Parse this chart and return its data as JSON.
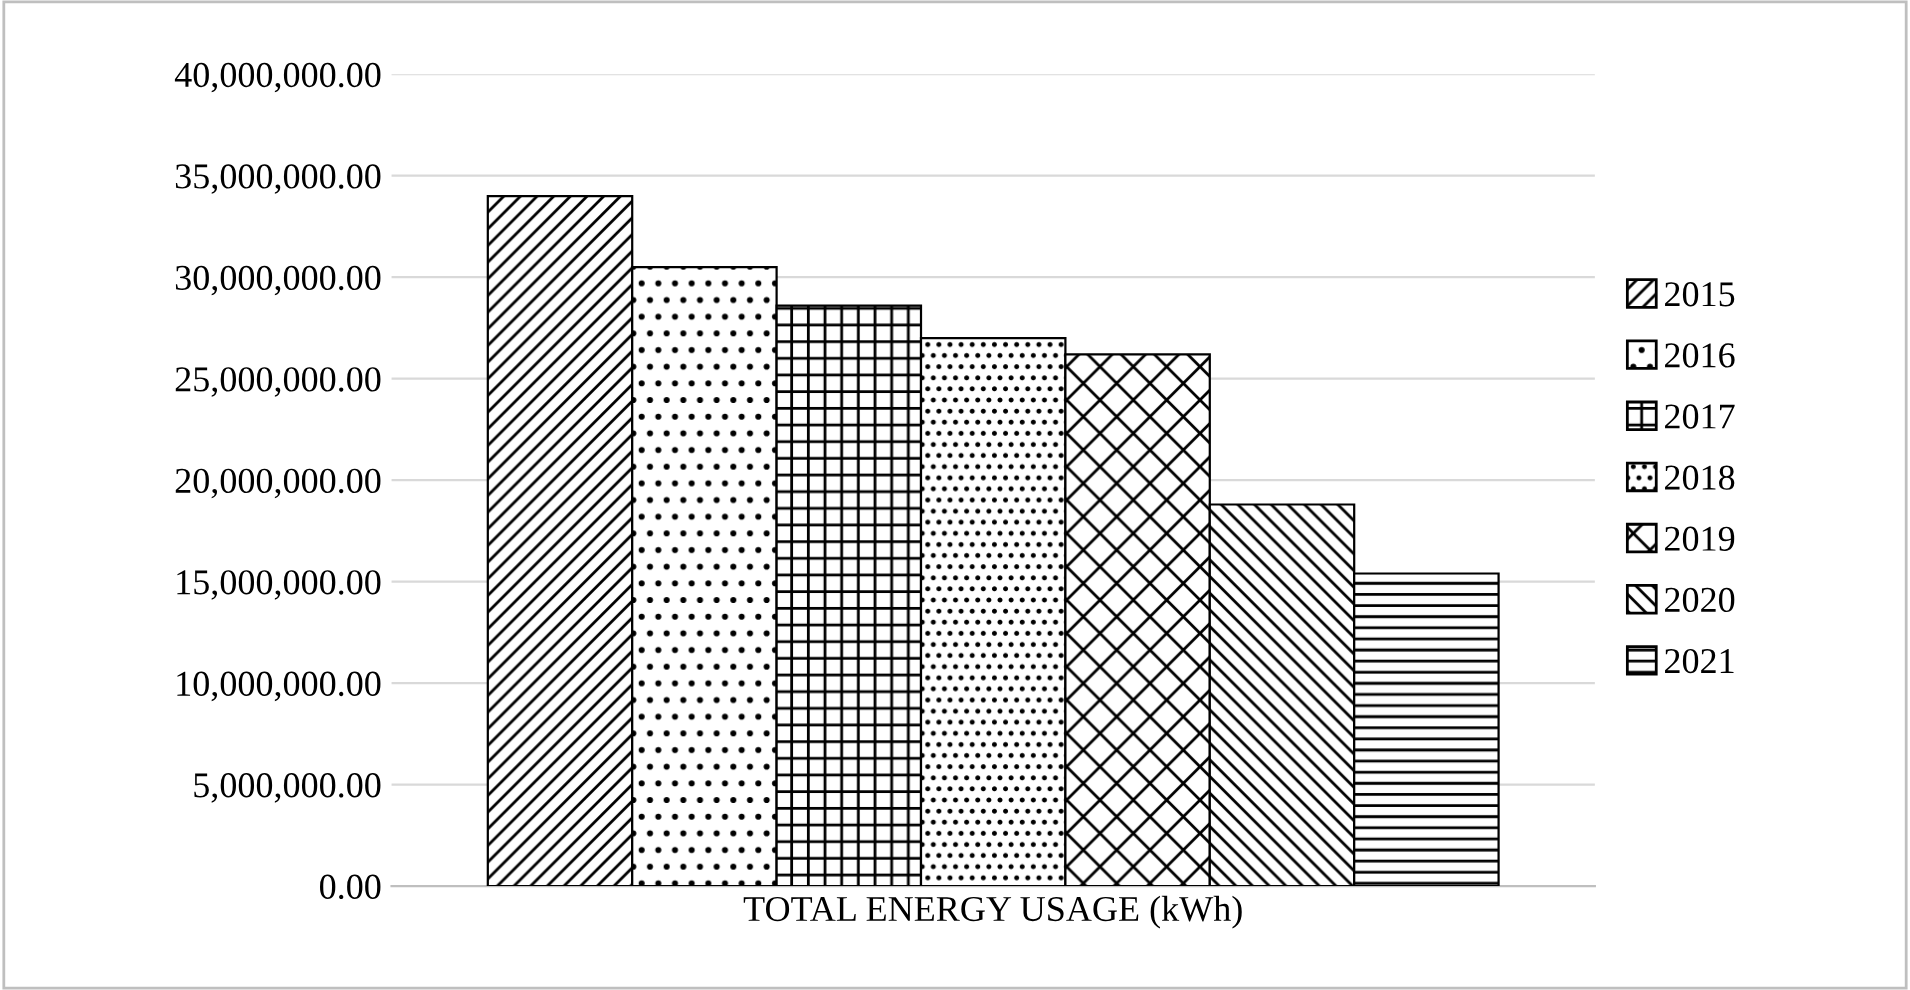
{
  "chart_data": {
    "type": "bar",
    "categories": [
      "TOTAL ENERGY USAGE (kWh)"
    ],
    "series": [
      {
        "name": "2015",
        "color": "#000000",
        "values": [
          34000000
        ]
      },
      {
        "name": "2016",
        "color": "#000000",
        "values": [
          30500000
        ]
      },
      {
        "name": "2017",
        "color": "#000000",
        "values": [
          28600000
        ]
      },
      {
        "name": "2018",
        "color": "#000000",
        "values": [
          27000000
        ]
      },
      {
        "name": "2019",
        "color": "#000000",
        "values": [
          26200000
        ]
      },
      {
        "name": "2020",
        "color": "#000000",
        "values": [
          18800000
        ]
      },
      {
        "name": "2021",
        "color": "#000000",
        "values": [
          15400000
        ]
      }
    ],
    "ylim": [
      0,
      40000000
    ],
    "yticks": [
      {
        "value": 0,
        "label": "0.00"
      },
      {
        "value": 5000000,
        "label": "5,000,000.00"
      },
      {
        "value": 10000000,
        "label": "10,000,000.00"
      },
      {
        "value": 15000000,
        "label": "15,000,000.00"
      },
      {
        "value": 20000000,
        "label": "20,000,000.00"
      },
      {
        "value": 25000000,
        "label": "25,000,000.00"
      },
      {
        "value": 30000000,
        "label": "30,000,000.00"
      },
      {
        "value": 35000000,
        "label": "35,000,000.00"
      },
      {
        "value": 40000000,
        "label": "40,000,000.00"
      }
    ],
    "grid": "y",
    "legend": "right"
  }
}
